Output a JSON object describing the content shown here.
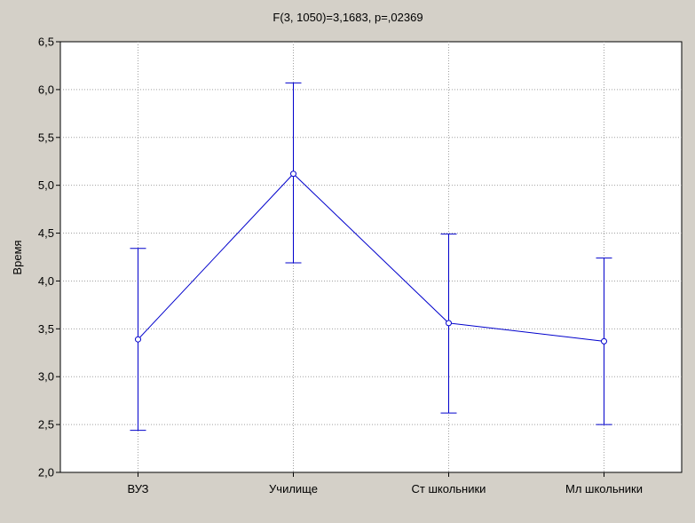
{
  "chart_data": {
    "type": "line",
    "title": "F(3, 1050)=3,1683, p=,02369",
    "xlabel": "",
    "ylabel": "Время",
    "categories": [
      "ВУЗ",
      "Училище",
      "Ст школьники",
      "Мл школьники"
    ],
    "series": [
      {
        "values": [
          3.39,
          5.12,
          3.56,
          3.37
        ],
        "error_low": [
          2.44,
          4.19,
          2.62,
          2.5
        ],
        "error_high": [
          4.34,
          6.07,
          4.49,
          4.24
        ]
      }
    ],
    "ylim": [
      2.0,
      6.5
    ],
    "yticks": [
      "2,0",
      "2,5",
      "3,0",
      "3,5",
      "4,0",
      "4,5",
      "5,0",
      "5,5",
      "6,0",
      "6,5"
    ],
    "grid": true,
    "colors": {
      "series": "#0000cc",
      "plot_bg": "#ffffff",
      "frame_bg": "#d4d0c8",
      "grid": "#a0a0a0"
    }
  }
}
